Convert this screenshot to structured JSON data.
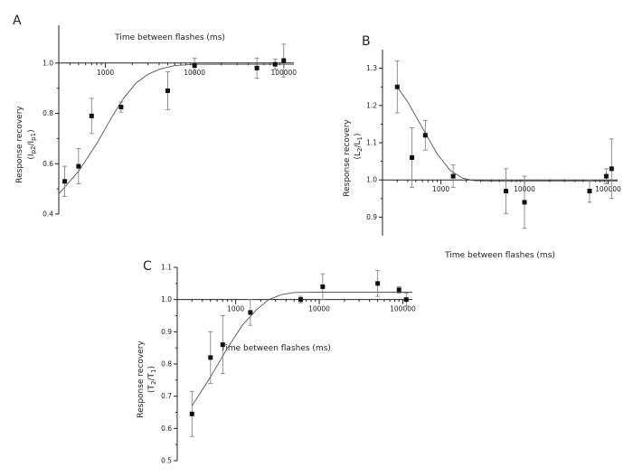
{
  "chart_data": [
    {
      "type": "scatter",
      "panel_label": "A",
      "xlabel": "Time between flashes (ms)",
      "ylabel": "Response recovery",
      "ylabel_sub": "(I",
      "ylabel_sub2": "p2",
      "ylabel_sub3": "/I",
      "ylabel_sub4": "p1",
      "ylabel_sub5": ")",
      "x_scale": "log",
      "xlim": [
        300,
        130000
      ],
      "ylim": [
        0.4,
        1.15
      ],
      "x_ticks": [
        1000,
        10000,
        100000
      ],
      "x_tick_labels": [
        "1000",
        "10000",
        "100000"
      ],
      "y_ticks": [
        0.4,
        0.6,
        0.8,
        1.0
      ],
      "y_tick_labels": [
        "0.4",
        "0.6",
        "0.8",
        "1.0"
      ],
      "baseline": 1.0,
      "points": [
        {
          "x": 350,
          "y": 0.53,
          "err": 0.06
        },
        {
          "x": 500,
          "y": 0.59,
          "err": 0.07
        },
        {
          "x": 700,
          "y": 0.79,
          "err": 0.07
        },
        {
          "x": 1500,
          "y": 0.825,
          "err": 0.02
        },
        {
          "x": 5000,
          "y": 0.89,
          "err": 0.075
        },
        {
          "x": 10000,
          "y": 0.99,
          "err": 0.03
        },
        {
          "x": 50000,
          "y": 0.98,
          "err": 0.04
        },
        {
          "x": 80000,
          "y": 0.995,
          "err": 0.02
        },
        {
          "x": 100000,
          "y": 1.01,
          "err": 0.065
        }
      ],
      "fit": [
        [
          300,
          0.48
        ],
        [
          500,
          0.57
        ],
        [
          800,
          0.68
        ],
        [
          1200,
          0.79
        ],
        [
          1600,
          0.86
        ],
        [
          2200,
          0.92
        ],
        [
          3000,
          0.955
        ],
        [
          4000,
          0.975
        ],
        [
          6000,
          0.99
        ],
        [
          10000,
          0.995
        ],
        [
          30000,
          0.995
        ],
        [
          130000,
          0.995
        ]
      ]
    },
    {
      "type": "scatter",
      "panel_label": "B",
      "xlabel": "Time between flashes (ms)",
      "ylabel": "Response recovery",
      "ylabel_sub": "(L",
      "ylabel_sub2": "2",
      "ylabel_sub3": "/L",
      "ylabel_sub4": "1",
      "ylabel_sub5": ")",
      "x_scale": "log",
      "xlim": [
        200,
        130000
      ],
      "ylim": [
        0.85,
        1.35
      ],
      "x_ticks": [
        1000,
        10000,
        100000
      ],
      "x_tick_labels": [
        "1000",
        "10000",
        "100000"
      ],
      "y_ticks": [
        0.9,
        1.0,
        1.1,
        1.2,
        1.3
      ],
      "y_tick_labels": [
        "0.9",
        "1.0",
        "1.1",
        "1.2",
        "1.3"
      ],
      "baseline": 1.0,
      "points": [
        {
          "x": 300,
          "y": 1.25,
          "err": 0.07
        },
        {
          "x": 450,
          "y": 1.06,
          "err": 0.08
        },
        {
          "x": 650,
          "y": 1.12,
          "err": 0.04
        },
        {
          "x": 1400,
          "y": 1.01,
          "err": 0.03
        },
        {
          "x": 6000,
          "y": 0.97,
          "err": 0.06
        },
        {
          "x": 10000,
          "y": 0.94,
          "err": 0.07
        },
        {
          "x": 60000,
          "y": 0.97,
          "err": 0.03
        },
        {
          "x": 95000,
          "y": 1.01,
          "err": 0.02
        },
        {
          "x": 110000,
          "y": 1.03,
          "err": 0.08
        }
      ],
      "fit": [
        [
          300,
          1.25
        ],
        [
          400,
          1.21
        ],
        [
          600,
          1.14
        ],
        [
          900,
          1.07
        ],
        [
          1300,
          1.025
        ],
        [
          1800,
          1.005
        ],
        [
          2500,
          0.998
        ],
        [
          4000,
          0.997
        ],
        [
          130000,
          0.997
        ]
      ]
    },
    {
      "type": "scatter",
      "panel_label": "C",
      "xlabel": "Time between flashes (ms)",
      "ylabel": "Response recovery",
      "ylabel_sub": "(T",
      "ylabel_sub2": "2",
      "ylabel_sub3": "/T",
      "ylabel_sub4": "1",
      "ylabel_sub5": ")",
      "x_scale": "log",
      "xlim": [
        200,
        130000
      ],
      "ylim": [
        0.5,
        1.1
      ],
      "x_ticks": [
        1000,
        10000,
        100000
      ],
      "x_tick_labels": [
        "1000",
        "10000",
        "100000"
      ],
      "y_ticks": [
        0.5,
        0.6,
        0.7,
        0.8,
        0.9,
        1.0,
        1.1
      ],
      "y_tick_labels": [
        "0.5",
        "0.6",
        "0.7",
        "0.8",
        "0.9",
        "1.0",
        "1.1"
      ],
      "baseline": 1.0,
      "points": [
        {
          "x": 300,
          "y": 0.645,
          "err": 0.07
        },
        {
          "x": 500,
          "y": 0.82,
          "err": 0.08
        },
        {
          "x": 700,
          "y": 0.86,
          "err": 0.09
        },
        {
          "x": 1500,
          "y": 0.96,
          "err": 0.04
        },
        {
          "x": 6000,
          "y": 1.0,
          "err": 0.01
        },
        {
          "x": 11000,
          "y": 1.04,
          "err": 0.04
        },
        {
          "x": 50000,
          "y": 1.05,
          "err": 0.04
        },
        {
          "x": 90000,
          "y": 1.03,
          "err": 0.01
        },
        {
          "x": 110000,
          "y": 1.0,
          "err": 0.02
        }
      ],
      "fit": [
        [
          300,
          0.67
        ],
        [
          500,
          0.76
        ],
        [
          800,
          0.85
        ],
        [
          1200,
          0.92
        ],
        [
          1800,
          0.97
        ],
        [
          2500,
          1.0
        ],
        [
          3500,
          1.015
        ],
        [
          5000,
          1.022
        ],
        [
          10000,
          1.023
        ],
        [
          130000,
          1.023
        ]
      ]
    }
  ]
}
